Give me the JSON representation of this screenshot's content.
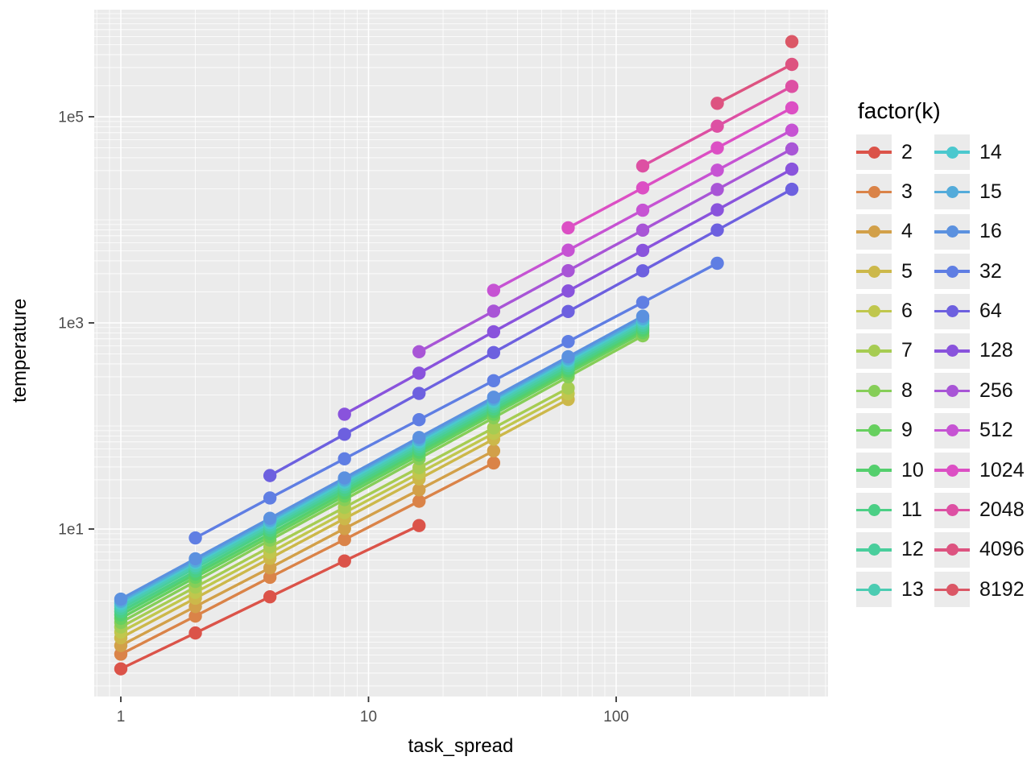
{
  "figure": {
    "background": "#FFFFFF",
    "panel_background": "#EBEBEB",
    "grid_color": "#FFFFFF",
    "tick_color": "#333333",
    "tick_label_color": "#4D4D4D"
  },
  "axes": {
    "x": {
      "title": "task_spread",
      "scale": "log10",
      "tick_labels": [
        "1",
        "10",
        "100"
      ],
      "tick_values": [
        1,
        10,
        100
      ]
    },
    "y": {
      "title": "temperature",
      "scale": "log10",
      "tick_labels": [
        "1e1",
        "1e3",
        "1e5"
      ],
      "tick_values": [
        10,
        1000,
        100000
      ]
    }
  },
  "legend": {
    "title": "factor(k)",
    "columns": 2,
    "entries": [
      {
        "label": "2",
        "color": "#DB5349"
      },
      {
        "label": "3",
        "color": "#DA8348"
      },
      {
        "label": "4",
        "color": "#D2A049"
      },
      {
        "label": "5",
        "color": "#CCB84A"
      },
      {
        "label": "6",
        "color": "#C0C74D"
      },
      {
        "label": "7",
        "color": "#A6CC52"
      },
      {
        "label": "8",
        "color": "#86CE58"
      },
      {
        "label": "9",
        "color": "#67D05F"
      },
      {
        "label": "10",
        "color": "#54CF6D"
      },
      {
        "label": "11",
        "color": "#4BCF85"
      },
      {
        "label": "12",
        "color": "#49CE9C"
      },
      {
        "label": "13",
        "color": "#4BCCB2"
      },
      {
        "label": "14",
        "color": "#4BC8CE"
      },
      {
        "label": "15",
        "color": "#53ABDA"
      },
      {
        "label": "16",
        "color": "#5B91DF"
      },
      {
        "label": "32",
        "color": "#5F7EE3"
      },
      {
        "label": "64",
        "color": "#6D60DF"
      },
      {
        "label": "128",
        "color": "#8953DC"
      },
      {
        "label": "256",
        "color": "#A855D6"
      },
      {
        "label": "512",
        "color": "#C653D3"
      },
      {
        "label": "1024",
        "color": "#DC4FC4"
      },
      {
        "label": "2048",
        "color": "#DD50A3"
      },
      {
        "label": "4096",
        "color": "#DD5380"
      },
      {
        "label": "8192",
        "color": "#DB5766"
      }
    ]
  },
  "chart_data": {
    "type": "line",
    "title": "",
    "xlabel": "task_spread",
    "ylabel": "temperature",
    "x_scale": "log10",
    "y_scale": "log10",
    "x_ticks": [
      1,
      10,
      100
    ],
    "y_ticks": [
      10,
      1000,
      100000
    ],
    "x_range": [
      0.75,
      700
    ],
    "y_range": [
      0.24,
      1050000
    ],
    "grid": "on",
    "legend_title": "factor(k)",
    "legend_position": "right",
    "series": [
      {
        "name": "2",
        "color": "#DB5349",
        "x": [
          1,
          2,
          4,
          8,
          16
        ],
        "temperature": [
          0.44,
          0.98,
          2.2,
          4.9,
          10.8
        ]
      },
      {
        "name": "3",
        "color": "#DA8348",
        "x": [
          1,
          2,
          4,
          8,
          16,
          32
        ],
        "temperature": [
          0.61,
          1.43,
          3.4,
          7.9,
          18.6,
          43.8
        ]
      },
      {
        "name": "4",
        "color": "#D2A049",
        "x": [
          1,
          2,
          4,
          8,
          16,
          32
        ],
        "temperature": [
          0.74,
          1.77,
          4.2,
          10.1,
          24,
          57.3
        ]
      },
      {
        "name": "5",
        "color": "#CCB84A",
        "x": [
          1,
          2,
          4,
          8,
          16,
          32,
          64
        ],
        "temperature": [
          0.88,
          2.13,
          5.2,
          12.6,
          30.6,
          74.5,
          181
        ]
      },
      {
        "name": "6",
        "color": "#C0C74D",
        "x": [
          1,
          2,
          4,
          8,
          16,
          32,
          64
        ],
        "temperature": [
          1.0,
          2.43,
          5.9,
          14.4,
          34.8,
          84.7,
          206
        ]
      },
      {
        "name": "7",
        "color": "#A6CC52",
        "x": [
          1,
          2,
          4,
          8,
          16,
          32,
          64
        ],
        "temperature": [
          1.12,
          2.73,
          6.7,
          16.2,
          39.4,
          95.7,
          233
        ]
      },
      {
        "name": "8",
        "color": "#86CE58",
        "x": [
          1,
          2,
          4,
          8,
          16,
          32,
          64,
          128
        ],
        "temperature": [
          1.24,
          3.1,
          7.8,
          19.3,
          48.2,
          120,
          300,
          750
        ]
      },
      {
        "name": "9",
        "color": "#67D05F",
        "x": [
          1,
          2,
          4,
          8,
          16,
          32,
          64,
          128
        ],
        "temperature": [
          1.36,
          3.4,
          8.4,
          20.9,
          52.1,
          130,
          324,
          805
        ]
      },
      {
        "name": "10",
        "color": "#54CF6D",
        "x": [
          1,
          2,
          4,
          8,
          16,
          32,
          64,
          128
        ],
        "temperature": [
          1.47,
          3.65,
          9.0,
          22.4,
          55.7,
          138,
          343,
          851
        ]
      },
      {
        "name": "11",
        "color": "#4BCF85",
        "x": [
          1,
          2,
          4,
          8,
          16,
          32,
          64,
          128
        ],
        "temperature": [
          1.58,
          3.9,
          9.7,
          23.9,
          59.2,
          146,
          362,
          897
        ]
      },
      {
        "name": "12",
        "color": "#49CE9C",
        "x": [
          1,
          2,
          4,
          8,
          16,
          32,
          64,
          128
        ],
        "temperature": [
          1.69,
          4.2,
          10.3,
          25.5,
          63,
          155,
          384,
          948
        ]
      },
      {
        "name": "13",
        "color": "#4BCCB2",
        "x": [
          1,
          2,
          4,
          8,
          16,
          32,
          64,
          128
        ],
        "temperature": [
          1.79,
          4.4,
          10.9,
          26.9,
          66.5,
          164,
          406,
          1000
        ]
      },
      {
        "name": "14",
        "color": "#4BC8CE",
        "x": [
          1,
          2,
          4,
          8,
          16,
          32,
          64,
          128
        ],
        "temperature": [
          1.89,
          4.7,
          11.5,
          28.5,
          70.2,
          173,
          428,
          1050
        ]
      },
      {
        "name": "15",
        "color": "#53ABDA",
        "x": [
          1,
          2,
          4,
          8,
          16,
          32,
          64,
          128
        ],
        "temperature": [
          1.99,
          4.9,
          12.1,
          29.9,
          73.7,
          182,
          448,
          1100
        ]
      },
      {
        "name": "16",
        "color": "#5B91DF",
        "x": [
          1,
          2,
          4,
          8,
          16,
          32,
          64,
          128
        ],
        "temperature": [
          2.09,
          5.15,
          12.7,
          31.3,
          77.3,
          190,
          469,
          1160
        ]
      },
      {
        "name": "32",
        "color": "#5F7EE3",
        "x": [
          2,
          4,
          8,
          16,
          32,
          64,
          128,
          256
        ],
        "temperature": [
          8.2,
          20,
          48,
          115,
          275,
          659,
          1580,
          3790
        ]
      },
      {
        "name": "64",
        "color": "#6D60DF",
        "x": [
          4,
          8,
          16,
          32,
          64,
          128,
          256,
          512
        ],
        "temperature": [
          33,
          83,
          207,
          516,
          1290,
          3200,
          7960,
          19800
        ]
      },
      {
        "name": "128",
        "color": "#8953DC",
        "x": [
          8,
          16,
          32,
          64,
          128,
          256,
          512
        ],
        "temperature": [
          130,
          325,
          820,
          2040,
          5050,
          12500,
          31000
        ]
      },
      {
        "name": "256",
        "color": "#A855D6",
        "x": [
          16,
          32,
          64,
          128,
          256,
          512
        ],
        "temperature": [
          525,
          1300,
          3210,
          7940,
          19700,
          48700
        ]
      },
      {
        "name": "512",
        "color": "#C653D3",
        "x": [
          32,
          64,
          128,
          256,
          512
        ],
        "temperature": [
          2070,
          5070,
          12400,
          30300,
          74100
        ]
      },
      {
        "name": "1024",
        "color": "#DC4FC4",
        "x": [
          64,
          128,
          256,
          512
        ],
        "temperature": [
          8360,
          20400,
          49900,
          122000
        ]
      },
      {
        "name": "2048",
        "color": "#DD50A3",
        "x": [
          128,
          256,
          512
        ],
        "temperature": [
          33300,
          81100,
          197000
        ]
      },
      {
        "name": "4096",
        "color": "#DD5380",
        "x": [
          256,
          512
        ],
        "temperature": [
          135000,
          322000
        ]
      },
      {
        "name": "8192",
        "color": "#DB5766",
        "x": [
          512
        ],
        "temperature": [
          536000
        ]
      }
    ]
  }
}
